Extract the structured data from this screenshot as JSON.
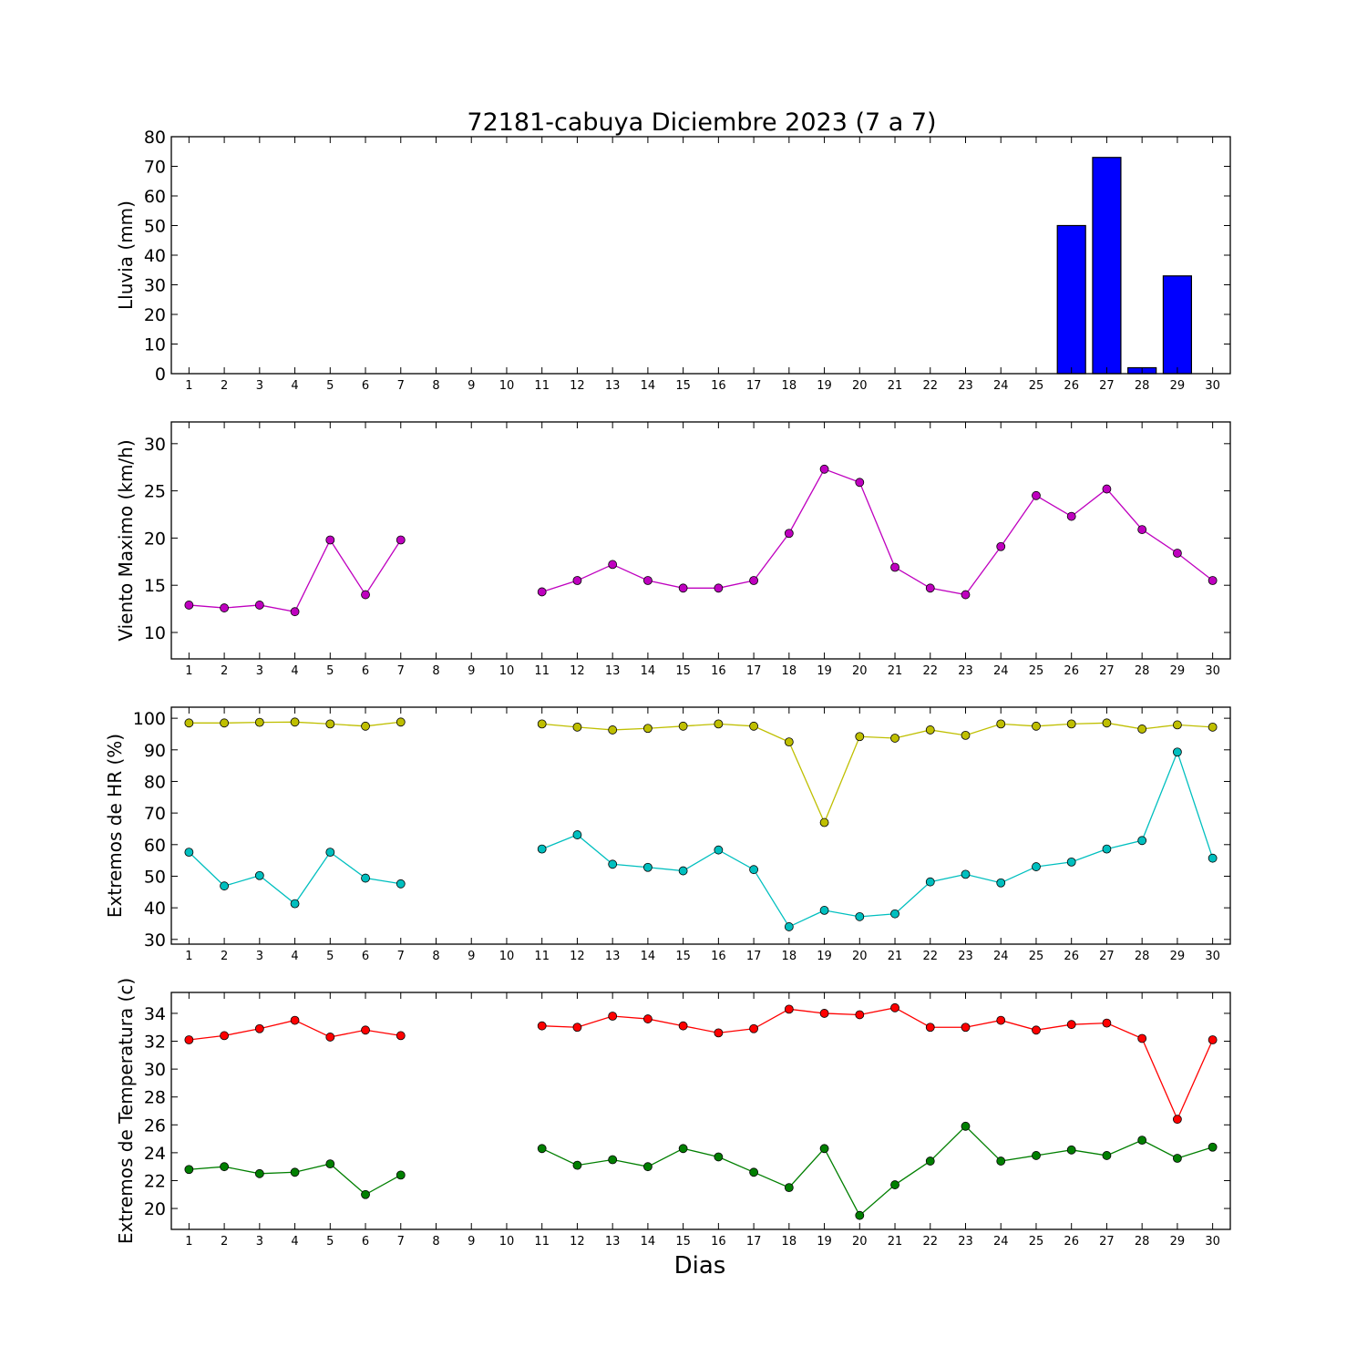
{
  "title": "72181-cabuya Diciembre 2023  (7 a 7)",
  "xlabel": "Dias",
  "chart_data": [
    {
      "type": "bar",
      "ylabel": "Lluvia (mm)",
      "ylim": [
        0,
        80
      ],
      "yticks": [
        0,
        10,
        20,
        30,
        40,
        50,
        60,
        70,
        80
      ],
      "x": [
        1,
        2,
        3,
        4,
        5,
        6,
        7,
        8,
        9,
        10,
        11,
        12,
        13,
        14,
        15,
        16,
        17,
        18,
        19,
        20,
        21,
        22,
        23,
        24,
        25,
        26,
        27,
        28,
        29,
        30
      ],
      "xlim": [
        0.5,
        30.5
      ],
      "series": [
        {
          "color": "#0000ff",
          "values": [
            0,
            0,
            0,
            0,
            0,
            0,
            0,
            0,
            0,
            0,
            0,
            0,
            0,
            0,
            0,
            0,
            0,
            0,
            0,
            0,
            0,
            0,
            0,
            0,
            0,
            50,
            73,
            2,
            33,
            0
          ]
        }
      ]
    },
    {
      "type": "line",
      "ylabel": "Viento Maximo (km/h)",
      "ylim": [
        7.2,
        32.3
      ],
      "yticks": [
        10,
        15,
        20,
        25,
        30
      ],
      "x": [
        1,
        2,
        3,
        4,
        5,
        6,
        7,
        8,
        9,
        10,
        11,
        12,
        13,
        14,
        15,
        16,
        17,
        18,
        19,
        20,
        21,
        22,
        23,
        24,
        25,
        26,
        27,
        28,
        29,
        30
      ],
      "xlim": [
        0.5,
        30.5
      ],
      "series": [
        {
          "color": "#bf00bf",
          "values": [
            12.9,
            12.6,
            12.9,
            12.2,
            19.8,
            14.0,
            19.8,
            null,
            null,
            null,
            14.3,
            15.5,
            17.2,
            15.5,
            14.7,
            14.7,
            15.5,
            20.5,
            27.3,
            25.9,
            16.9,
            14.7,
            14.0,
            19.1,
            24.5,
            22.3,
            25.2,
            20.9,
            18.4,
            15.5
          ]
        }
      ]
    },
    {
      "type": "line",
      "ylabel": "Extremos de HR (%)",
      "ylim": [
        28.5,
        103.5
      ],
      "yticks": [
        30,
        40,
        50,
        60,
        70,
        80,
        90,
        100
      ],
      "x": [
        1,
        2,
        3,
        4,
        5,
        6,
        7,
        8,
        9,
        10,
        11,
        12,
        13,
        14,
        15,
        16,
        17,
        18,
        19,
        20,
        21,
        22,
        23,
        24,
        25,
        26,
        27,
        28,
        29,
        30
      ],
      "xlim": [
        0.5,
        30.5
      ],
      "series": [
        {
          "color": "#bfbf00",
          "values": [
            98.5,
            98.5,
            98.7,
            98.8,
            98.2,
            97.5,
            98.8,
            null,
            null,
            null,
            98.2,
            97.2,
            96.3,
            96.8,
            97.5,
            98.2,
            97.5,
            92.5,
            67,
            94.2,
            93.7,
            96.3,
            94.6,
            98.2,
            97.5,
            98.2,
            98.5,
            96.6,
            97.9,
            97.2
          ]
        },
        {
          "color": "#00bfbf",
          "values": [
            57.6,
            46.9,
            50.2,
            41.3,
            57.6,
            49.4,
            47.6,
            null,
            null,
            null,
            58.6,
            63.1,
            53.8,
            52.8,
            51.7,
            58.3,
            52.1,
            34,
            39.2,
            37.2,
            38.1,
            48.2,
            50.6,
            47.9,
            53.0,
            54.5,
            58.6,
            61.3,
            89.3,
            55.7
          ]
        }
      ]
    },
    {
      "type": "line",
      "ylabel": "Extremos de Temperatura (c)",
      "ylim": [
        18.5,
        35.5
      ],
      "yticks": [
        20,
        22,
        24,
        26,
        28,
        30,
        32,
        34
      ],
      "x": [
        1,
        2,
        3,
        4,
        5,
        6,
        7,
        8,
        9,
        10,
        11,
        12,
        13,
        14,
        15,
        16,
        17,
        18,
        19,
        20,
        21,
        22,
        23,
        24,
        25,
        26,
        27,
        28,
        29,
        30
      ],
      "xlim": [
        0.5,
        30.5
      ],
      "series": [
        {
          "color": "#ff0000",
          "values": [
            32.1,
            32.4,
            32.9,
            33.5,
            32.3,
            32.8,
            32.4,
            null,
            null,
            null,
            33.1,
            33.0,
            33.8,
            33.6,
            33.1,
            32.6,
            32.9,
            34.3,
            34.0,
            33.9,
            34.4,
            33.0,
            33.0,
            33.5,
            32.8,
            33.2,
            33.3,
            32.2,
            26.4,
            32.1
          ]
        },
        {
          "color": "#007f00",
          "values": [
            22.8,
            23.0,
            22.5,
            22.6,
            23.2,
            21.0,
            22.4,
            null,
            null,
            null,
            24.3,
            23.1,
            23.5,
            23.0,
            24.3,
            23.7,
            22.6,
            21.5,
            24.3,
            19.5,
            21.7,
            23.4,
            25.9,
            23.4,
            23.8,
            24.2,
            23.8,
            24.9,
            23.6,
            24.4
          ]
        }
      ]
    }
  ]
}
